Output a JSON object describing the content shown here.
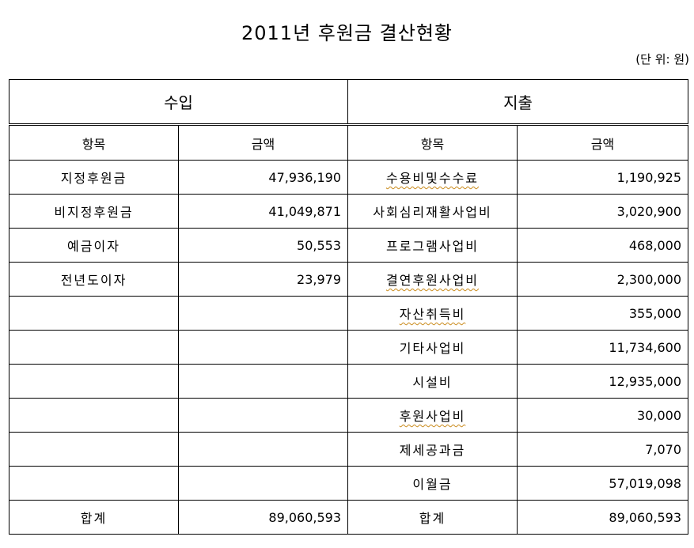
{
  "title": "2011년 후원금 결산현황",
  "unit": "(단 위:  원)",
  "income": {
    "section": "수입",
    "col_item": "항목",
    "col_amount": "금액",
    "rows": [
      {
        "item": "지정후원금",
        "amount": "47,936,190"
      },
      {
        "item": "비지정후원금",
        "amount": "41,049,871"
      },
      {
        "item": "예금이자",
        "amount": "50,553"
      },
      {
        "item": "전년도이자",
        "amount": "23,979"
      },
      {
        "item": "",
        "amount": ""
      },
      {
        "item": "",
        "amount": ""
      },
      {
        "item": "",
        "amount": ""
      },
      {
        "item": "",
        "amount": ""
      },
      {
        "item": "",
        "amount": ""
      },
      {
        "item": "",
        "amount": ""
      }
    ],
    "total_label": "합계",
    "total_amount": "89,060,593"
  },
  "expense": {
    "section": "지출",
    "col_item": "항목",
    "col_amount": "금액",
    "rows": [
      {
        "item": "수용비및수수료",
        "amount": "1,190,925"
      },
      {
        "item": "사회심리재활사업비",
        "amount": "3,020,900"
      },
      {
        "item": "프로그램사업비",
        "amount": "468,000"
      },
      {
        "item": "결연후원사업비",
        "amount": "2,300,000"
      },
      {
        "item": "자산취득비",
        "amount": "355,000"
      },
      {
        "item": "기타사업비",
        "amount": "11,734,600"
      },
      {
        "item": "시설비",
        "amount": "12,935,000"
      },
      {
        "item": "후원사업비",
        "amount": "30,000"
      },
      {
        "item": "제세공과금",
        "amount": "7,070"
      },
      {
        "item": "이월금",
        "amount": "57,019,098"
      }
    ],
    "total_label": "합계",
    "total_amount": "89,060,593"
  }
}
